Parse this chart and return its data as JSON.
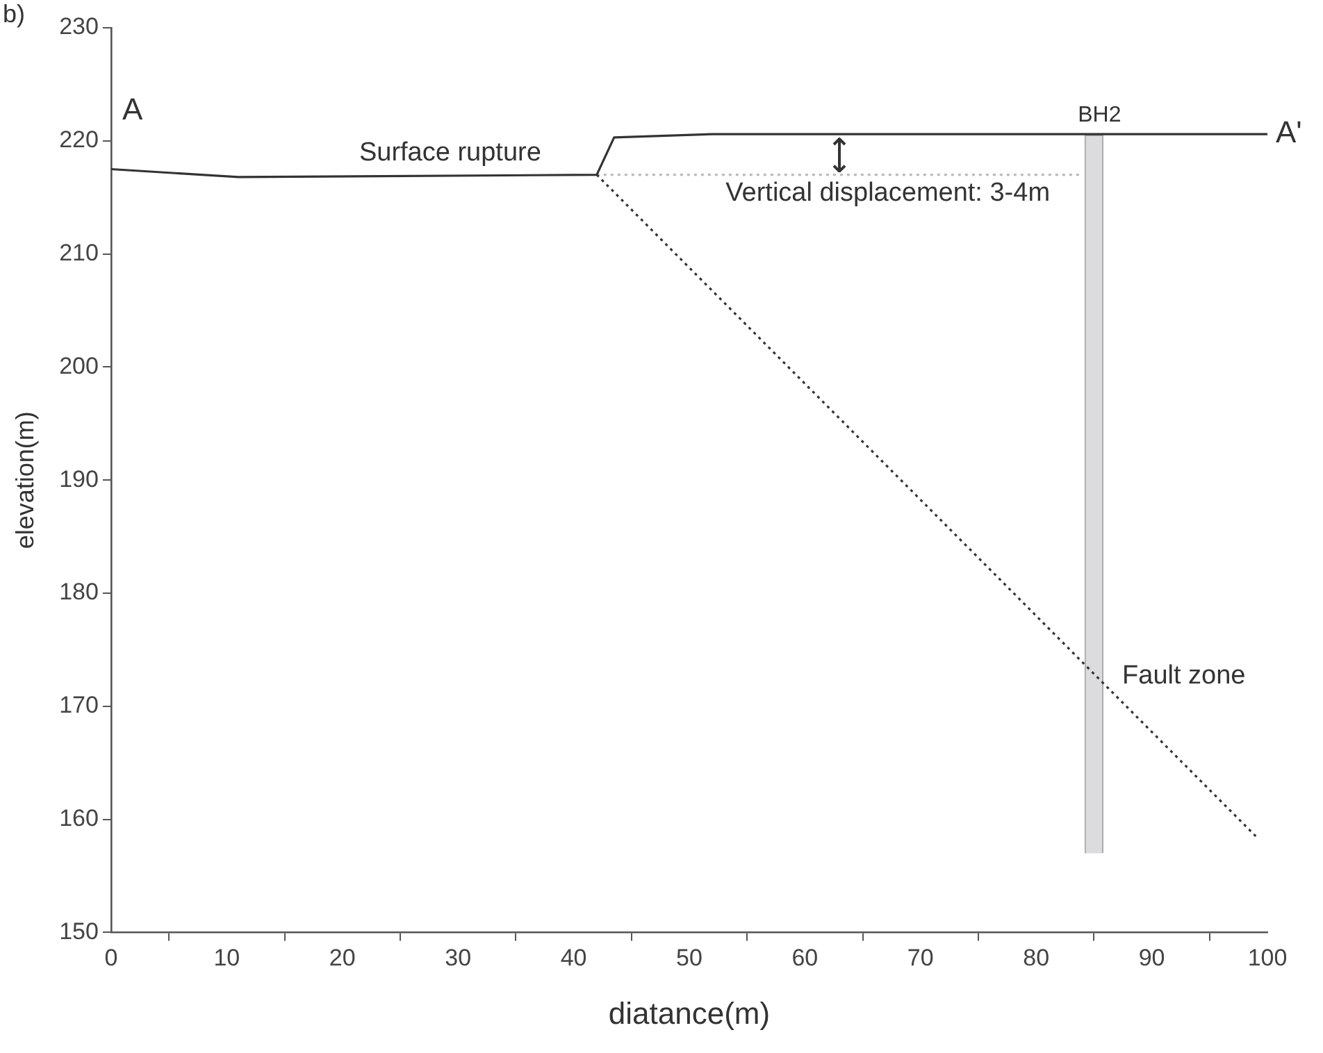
{
  "chart_data": {
    "type": "line",
    "title": "b)",
    "xlabel": "diatance(m)",
    "ylabel": "elevation(m)",
    "xlim": [
      0,
      100
    ],
    "xticks": [
      0,
      10,
      20,
      30,
      40,
      50,
      60,
      70,
      80,
      90,
      100
    ],
    "ylim": [
      150,
      230
    ],
    "yticks": [
      150,
      160,
      170,
      180,
      190,
      200,
      210,
      220,
      230
    ],
    "grid": false,
    "legend": false,
    "marker": "none",
    "series": [
      {
        "color": "#333333",
        "x": [
          0,
          11,
          42,
          43.5,
          52,
          100
        ],
        "values": [
          217.5,
          216.8,
          217,
          220.3,
          220.6,
          220.6
        ],
        "line_style": "solid"
      },
      {
        "color": "#333333",
        "x": [
          42,
          99
        ],
        "values": [
          217,
          158.5
        ],
        "line_style": "dotted"
      },
      {
        "color": "#bbbbbb",
        "x": [
          42,
          84
        ],
        "values": [
          217,
          217
        ],
        "line_style": "dotted"
      },
      {
        "type": "bar",
        "name": "BH2",
        "color": "#dcdcde",
        "x": [
          85
        ],
        "base": [
          157
        ],
        "values": [
          63.5
        ]
      }
    ],
    "annotations": [
      "A",
      {
        "text": "A'",
        "x": 100,
        "y": 220.6
      },
      {
        "text": "Surface rupture",
        "x": 42,
        "y": 217
      },
      {
        "text": "Vertical displacement: 3-4m",
        "x": 63,
        "y": 217
      },
      {
        "text": "Fault zone",
        "x": 86,
        "y": 171
      }
    ]
  }
}
